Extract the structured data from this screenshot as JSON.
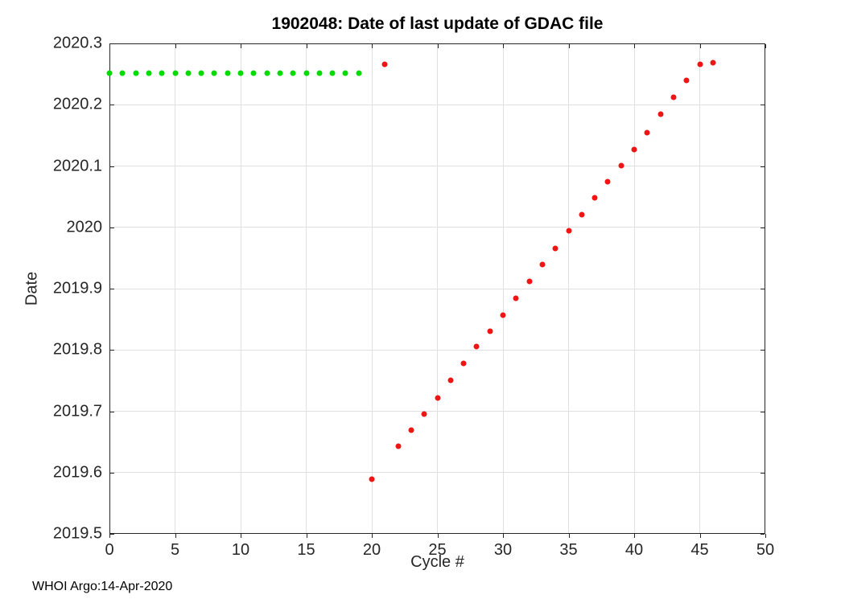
{
  "chart_data": {
    "type": "scatter",
    "title": "1902048: Date of last update of GDAC file",
    "xlabel": "Cycle #",
    "ylabel": "Date",
    "footer": "WHOI Argo:14-Apr-2020",
    "xlim": [
      0,
      50
    ],
    "ylim": [
      2019.5,
      2020.3
    ],
    "xticks": [
      0,
      5,
      10,
      15,
      20,
      25,
      30,
      35,
      40,
      45,
      50
    ],
    "xtick_labels": [
      "0",
      "5",
      "10",
      "15",
      "20",
      "25",
      "30",
      "35",
      "40",
      "45",
      "50"
    ],
    "yticks": [
      2019.5,
      2019.6,
      2019.7,
      2019.8,
      2019.9,
      2020.0,
      2020.1,
      2020.2,
      2020.3
    ],
    "ytick_labels": [
      "2019.5",
      "2019.6",
      "2019.7",
      "2019.8",
      "2019.9",
      "2020",
      "2020.1",
      "2020.2",
      "2020.3"
    ],
    "grid": true,
    "legend_position": "none",
    "colors": {
      "axis": "#262626",
      "grid": "#e0e0e0",
      "title": "#000000",
      "background": "#ffffff"
    },
    "series": [
      {
        "name": "delayed-mode-cycles-green",
        "color": "#00dc00",
        "marker": "dot",
        "points": [
          [
            0,
            2020.252
          ],
          [
            1,
            2020.252
          ],
          [
            2,
            2020.252
          ],
          [
            3,
            2020.252
          ],
          [
            4,
            2020.252
          ],
          [
            5,
            2020.252
          ],
          [
            6,
            2020.252
          ],
          [
            7,
            2020.252
          ],
          [
            8,
            2020.252
          ],
          [
            9,
            2020.252
          ],
          [
            10,
            2020.252
          ],
          [
            11,
            2020.252
          ],
          [
            12,
            2020.252
          ],
          [
            13,
            2020.252
          ],
          [
            14,
            2020.252
          ],
          [
            15,
            2020.252
          ],
          [
            16,
            2020.252
          ],
          [
            17,
            2020.252
          ],
          [
            18,
            2020.252
          ],
          [
            19,
            2020.252
          ]
        ]
      },
      {
        "name": "realtime-cycles-red",
        "color": "#f01414",
        "marker": "dot",
        "points": [
          [
            20,
            2019.589
          ],
          [
            21,
            2020.266
          ],
          [
            22,
            2019.643
          ],
          [
            23,
            2019.669
          ],
          [
            24,
            2019.696
          ],
          [
            25,
            2019.722
          ],
          [
            26,
            2019.751
          ],
          [
            27,
            2019.778
          ],
          [
            28,
            2019.805
          ],
          [
            29,
            2019.831
          ],
          [
            30,
            2019.857
          ],
          [
            31,
            2019.884
          ],
          [
            32,
            2019.912
          ],
          [
            33,
            2019.939
          ],
          [
            34,
            2019.966
          ],
          [
            35,
            2019.994
          ],
          [
            36,
            2020.021
          ],
          [
            37,
            2020.048
          ],
          [
            38,
            2020.074
          ],
          [
            39,
            2020.101
          ],
          [
            40,
            2020.127
          ],
          [
            41,
            2020.154
          ],
          [
            42,
            2020.184
          ],
          [
            43,
            2020.212
          ],
          [
            44,
            2020.24
          ],
          [
            45,
            2020.266
          ],
          [
            46,
            2020.268
          ]
        ]
      }
    ]
  }
}
